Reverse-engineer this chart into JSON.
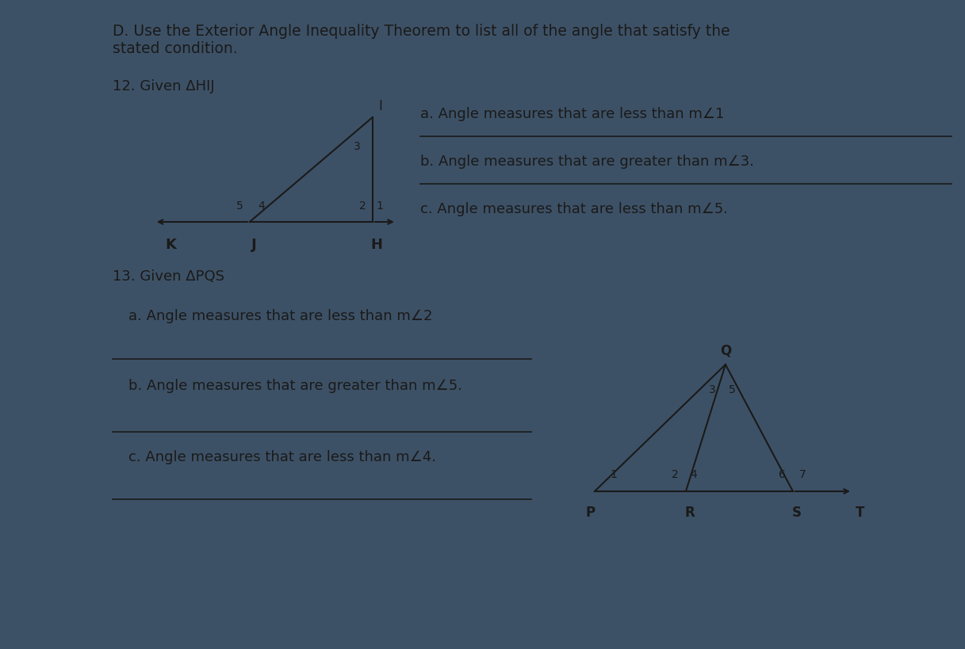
{
  "outer_bg": "#3d5166",
  "paper_color": "#dde3e8",
  "title": "D. Use the Exterior Angle Inequality Theorem to list all of the angle that satisfy the\nstated condition.",
  "q12_label": "12. Given ΔHIJ",
  "q13_label": "13. Given ΔPQS",
  "q12_parts": [
    "a. Angle measures that are less than m∠1",
    "b. Angle measures that are greater than m∠3.",
    "c. Angle measures that are less than m∠5."
  ],
  "q13_parts": [
    "a. Angle measures that are less than m∠2",
    "b. Angle measures that are greater than m∠5.",
    "c. Angle measures that are less than m∠4."
  ],
  "line_color": "#1a1a1a",
  "text_color": "#1a1a1a",
  "font_size_title": 13.5,
  "font_size_label": 13,
  "font_size_text": 13,
  "font_size_angle": 10.5
}
